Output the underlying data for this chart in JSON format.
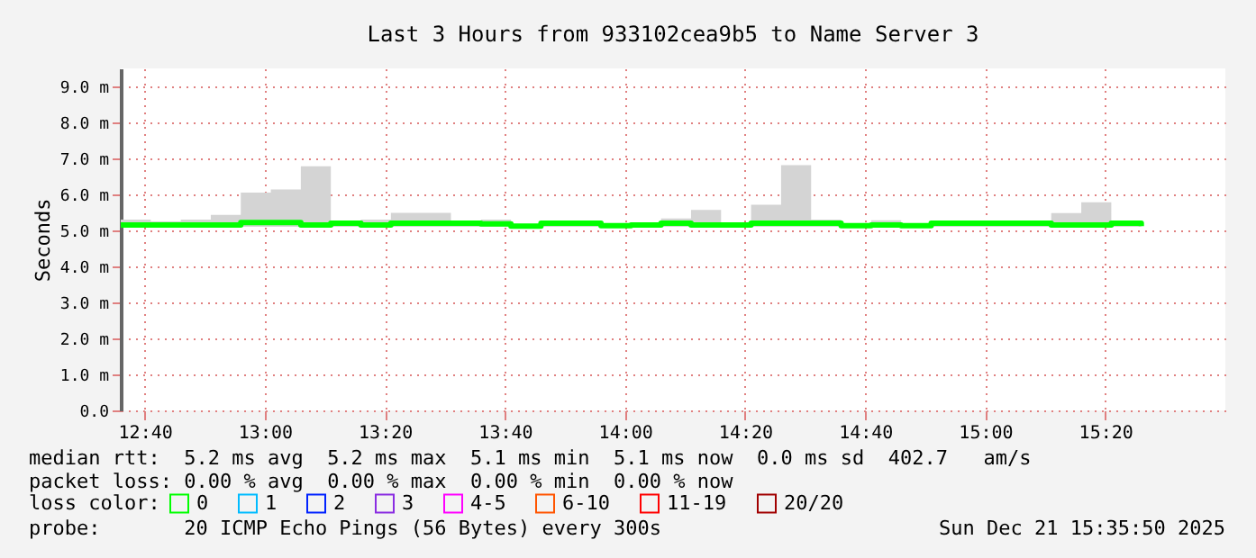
{
  "chart_data": {
    "type": "step",
    "title": "Last 3 Hours from 933102cea9b5 to Name Server 3",
    "ylabel": "Seconds",
    "x": [
      12.6,
      12.6833,
      12.7667,
      12.85,
      12.9333,
      13.0167,
      13.1,
      13.1833,
      13.2667,
      13.35,
      13.4333,
      13.5167,
      13.6,
      13.6833,
      13.7667,
      13.85,
      13.9333,
      14.0167,
      14.1,
      14.1833,
      14.2667,
      14.35,
      14.4333,
      14.5167,
      14.6,
      14.6833,
      14.7667,
      14.85,
      14.9333,
      15.0167,
      15.1,
      15.1833,
      15.2667,
      15.35,
      15.4333
    ],
    "series": [
      {
        "name": "0",
        "color": "#00ff00",
        "values": [
          5.15,
          5.15,
          5.15,
          5.15,
          5.22,
          5.22,
          5.15,
          5.2,
          5.15,
          5.2,
          5.2,
          5.2,
          5.18,
          5.12,
          5.2,
          5.2,
          5.13,
          5.15,
          5.2,
          5.15,
          5.15,
          5.2,
          5.2,
          5.2,
          5.13,
          5.15,
          5.13,
          5.2,
          5.2,
          5.2,
          5.2,
          5.15,
          5.15,
          5.2,
          5.12
        ],
        "lower": [
          5.1,
          5.1,
          5.1,
          5.1,
          5.1,
          5.1,
          5.1,
          5.1,
          5.1,
          5.1,
          5.1,
          5.1,
          5.1,
          5.1,
          5.1,
          5.1,
          5.1,
          5.1,
          5.1,
          5.1,
          5.1,
          5.1,
          5.1,
          5.1,
          5.1,
          5.1,
          5.1,
          5.1,
          5.1,
          5.1,
          5.1,
          5.1,
          5.1,
          5.1,
          5.1
        ],
        "upper": [
          5.3,
          5.25,
          5.3,
          5.43,
          6.05,
          6.14,
          6.78,
          5.25,
          5.3,
          5.49,
          5.49,
          5.2,
          5.3,
          5.15,
          5.25,
          5.25,
          5.18,
          5.15,
          5.33,
          5.57,
          5.18,
          5.71,
          6.81,
          5.3,
          5.2,
          5.28,
          5.2,
          5.27,
          5.2,
          5.27,
          5.22,
          5.48,
          5.78,
          5.2,
          5.27
        ]
      },
      {
        "name": "1",
        "color": "#00bbff",
        "values": [
          null,
          null,
          null,
          null,
          null,
          null,
          null,
          null,
          null,
          null,
          null,
          null,
          null,
          null,
          null,
          null,
          null,
          null,
          null,
          null,
          null,
          null,
          null,
          null,
          null,
          null,
          null,
          null,
          null,
          null,
          null,
          null,
          null,
          null,
          null
        ]
      },
      {
        "name": "2",
        "color": "#0022ff",
        "values": [
          null,
          null,
          null,
          null,
          null,
          null,
          null,
          null,
          null,
          null,
          null,
          null,
          null,
          null,
          null,
          null,
          null,
          null,
          null,
          null,
          null,
          null,
          null,
          null,
          null,
          null,
          null,
          null,
          null,
          null,
          null,
          null,
          null,
          null,
          null
        ]
      },
      {
        "name": "3",
        "color": "#8a2ce2",
        "values": [
          null,
          null,
          null,
          null,
          null,
          null,
          null,
          null,
          null,
          null,
          null,
          null,
          null,
          null,
          null,
          null,
          null,
          null,
          null,
          null,
          null,
          null,
          null,
          null,
          null,
          null,
          null,
          null,
          null,
          null,
          null,
          null,
          null,
          null,
          null
        ]
      },
      {
        "name": "4-5",
        "color": "#ff00ff",
        "values": [
          null,
          null,
          null,
          null,
          null,
          null,
          null,
          null,
          null,
          null,
          null,
          null,
          null,
          null,
          null,
          null,
          null,
          null,
          null,
          null,
          null,
          null,
          null,
          null,
          null,
          null,
          null,
          null,
          null,
          null,
          null,
          null,
          null,
          null,
          null
        ]
      },
      {
        "name": "6-10",
        "color": "#ff5500",
        "values": [
          null,
          null,
          null,
          null,
          null,
          null,
          null,
          null,
          null,
          null,
          null,
          null,
          null,
          null,
          null,
          null,
          null,
          null,
          null,
          null,
          null,
          null,
          null,
          null,
          null,
          null,
          null,
          null,
          null,
          null,
          null,
          null,
          null,
          null,
          null
        ]
      },
      {
        "name": "11-19",
        "color": "#ff0000",
        "values": [
          null,
          null,
          null,
          null,
          null,
          null,
          null,
          null,
          null,
          null,
          null,
          null,
          null,
          null,
          null,
          null,
          null,
          null,
          null,
          null,
          null,
          null,
          null,
          null,
          null,
          null,
          null,
          null,
          null,
          null,
          null,
          null,
          null,
          null,
          null
        ]
      },
      {
        "name": "20/20",
        "color": "#a10000",
        "values": [
          null,
          null,
          null,
          null,
          null,
          null,
          null,
          null,
          null,
          null,
          null,
          null,
          null,
          null,
          null,
          null,
          null,
          null,
          null,
          null,
          null,
          null,
          null,
          null,
          null,
          null,
          null,
          null,
          null,
          null,
          null,
          null,
          null,
          null,
          null
        ]
      }
    ],
    "legend_title": "loss color:",
    "legend": "bottom",
    "xlim": [
      12.6,
      15.6667
    ],
    "xticks": [
      {
        "value": 12.6667,
        "label": "12:40"
      },
      {
        "value": 13.0,
        "label": "13:00"
      },
      {
        "value": 13.3333,
        "label": "13:20"
      },
      {
        "value": 13.6667,
        "label": "13:40"
      },
      {
        "value": 14.0,
        "label": "14:00"
      },
      {
        "value": 14.3333,
        "label": "14:20"
      },
      {
        "value": 14.6667,
        "label": "14:40"
      },
      {
        "value": 15.0,
        "label": "15:00"
      },
      {
        "value": 15.3333,
        "label": "15:20"
      }
    ],
    "ylim": [
      0,
      9.5
    ],
    "yticks": [
      {
        "value": 0,
        "label": "0.0"
      },
      {
        "value": 1,
        "label": "1.0 m"
      },
      {
        "value": 2,
        "label": "2.0 m"
      },
      {
        "value": 3,
        "label": "3.0 m"
      },
      {
        "value": 4,
        "label": "4.0 m"
      },
      {
        "value": 5,
        "label": "5.0 m"
      },
      {
        "value": 6,
        "label": "6.0 m"
      },
      {
        "value": 7,
        "label": "7.0 m"
      },
      {
        "value": 8,
        "label": "8.0 m"
      },
      {
        "value": 9,
        "label": "9.0 m"
      }
    ],
    "grid": true,
    "annotations": [
      "median rtt:  5.2 ms avg  5.2 ms max  5.1 ms min  5.1 ms now  0.0 ms sd  402.7   am/s",
      "packet loss: 0.00 % avg  0.00 % max  0.00 % min  0.00 % now",
      "probe:       20 ICMP Echo Pings (56 Bytes) every 300s",
      "Sun Dec 21 15:35:50 2025"
    ]
  }
}
